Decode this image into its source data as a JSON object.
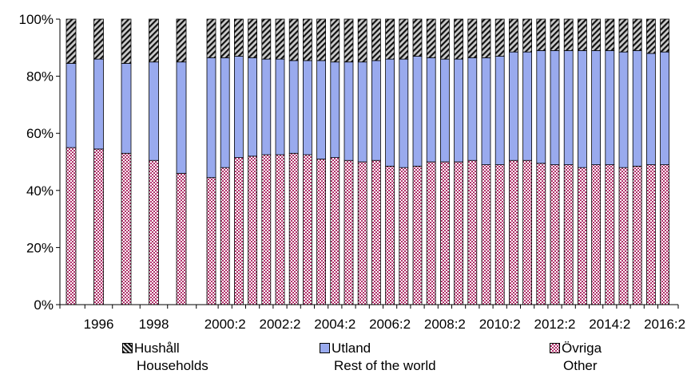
{
  "chart_data": {
    "type": "bar",
    "stacked": true,
    "percent": true,
    "title": "",
    "xlabel": "",
    "ylabel": "",
    "ylim": [
      0,
      100
    ],
    "yticks": [
      "0%",
      "20%",
      "40%",
      "60%",
      "80%",
      "100%"
    ],
    "grid": false,
    "legend_position": "bottom",
    "categories": [
      "1995",
      "1996",
      "1997",
      "1998",
      "1999",
      "2000:1",
      "2000:2",
      "2001:1",
      "2001:2",
      "2002:1",
      "2002:2",
      "2003:1",
      "2003:2",
      "2004:1",
      "2004:2",
      "2005:1",
      "2005:2",
      "2006:1",
      "2006:2",
      "2007:1",
      "2007:2",
      "2008:1",
      "2008:2",
      "2009:1",
      "2009:2",
      "2010:1",
      "2010:2",
      "2011:1",
      "2011:2",
      "2012:1",
      "2012:2",
      "2013:1",
      "2013:2",
      "2014:1",
      "2014:2",
      "2015:1",
      "2015:2",
      "2016:1",
      "2016:2"
    ],
    "xtick_labels": [
      "1996",
      "1998",
      "2000:2",
      "2002:2",
      "2004:2",
      "2006:2",
      "2008:2",
      "2010:2",
      "2012:2",
      "2014:2",
      "2016:2"
    ],
    "series": [
      {
        "name": "Övriga",
        "name_en": "Other",
        "color": "#cc6699",
        "pattern": "checker",
        "values": [
          55,
          54.5,
          53,
          50.5,
          46,
          44.5,
          48,
          51.5,
          52,
          52.5,
          52.5,
          53,
          52.5,
          51,
          51.5,
          50.5,
          50,
          50.5,
          48.5,
          48,
          48.5,
          50,
          50,
          50,
          50.5,
          49,
          49,
          50.5,
          50.5,
          49.5,
          49,
          49,
          48,
          49,
          49,
          48,
          48.5,
          49,
          49
        ]
      },
      {
        "name": "Utland",
        "name_en": "Rest of the world",
        "color": "#99aaee",
        "pattern": "solid",
        "values": [
          29.5,
          31.5,
          31.5,
          34.5,
          39,
          42,
          38.5,
          35.5,
          34.5,
          33.5,
          33.5,
          32.5,
          33,
          34.5,
          33.5,
          34.5,
          35,
          35,
          37.5,
          38,
          38.5,
          36.5,
          36,
          36,
          36,
          37.5,
          38,
          38,
          38,
          39.5,
          40,
          40,
          41,
          40,
          40,
          40.5,
          40.5,
          39,
          39.5
        ]
      },
      {
        "name": "Hushåll",
        "name_en": "Households",
        "color": "#999999",
        "pattern": "hatch",
        "values": [
          15.5,
          14,
          15.5,
          15,
          15,
          13.5,
          13.5,
          13,
          13.5,
          14,
          14,
          14.5,
          14.5,
          14.5,
          15,
          15,
          15,
          14.5,
          14,
          14,
          13,
          13.5,
          14,
          14,
          13.5,
          13.5,
          13,
          11.5,
          11.5,
          11,
          11,
          11,
          11,
          11,
          11,
          11.5,
          11,
          12,
          11.5
        ]
      }
    ]
  },
  "legend": [
    {
      "label": "Hushåll",
      "sublabel": "Households",
      "pattern": "hatch"
    },
    {
      "label": "Utland",
      "sublabel": "Rest of the world",
      "pattern": "solid"
    },
    {
      "label": "Övriga",
      "sublabel": "Other",
      "pattern": "checker"
    }
  ]
}
